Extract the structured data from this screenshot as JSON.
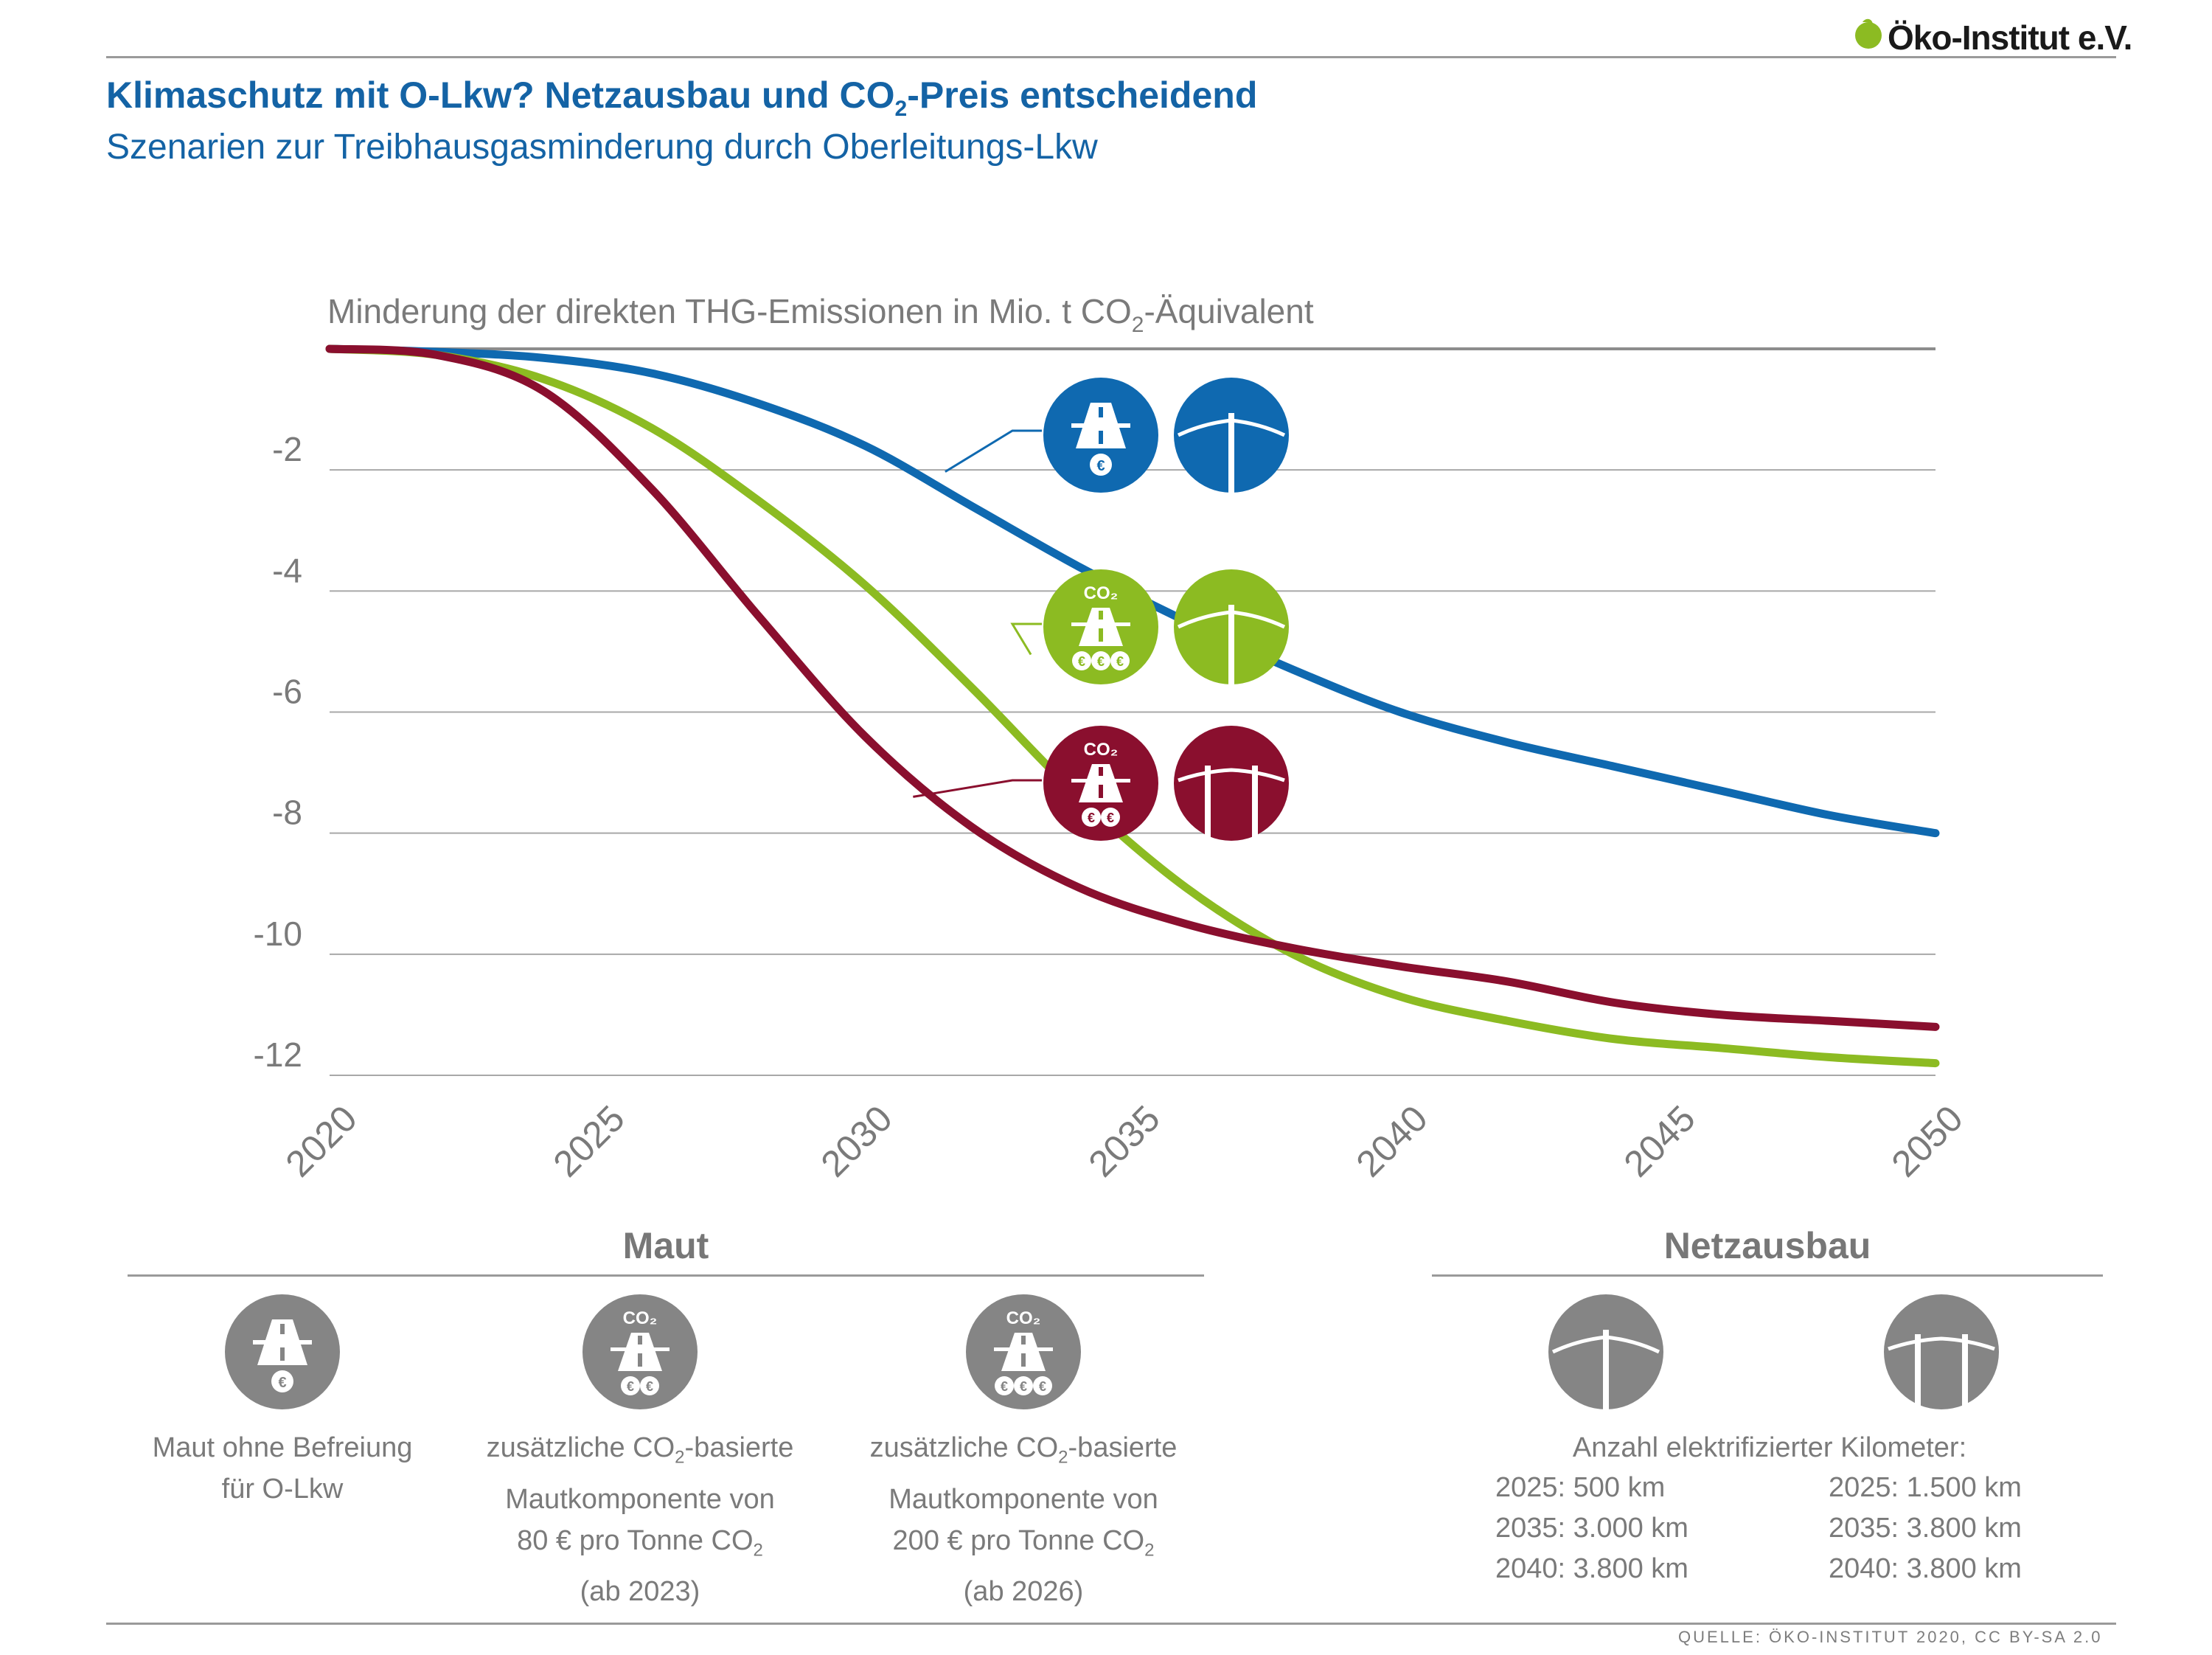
{
  "header": {
    "title_part1": "Klimaschutz mit O-Lkw? Netzausbau und CO",
    "title_sub": "2",
    "title_part2": "-Preis entscheidend",
    "subtitle": "Szenarien zur Treibhausgasminderung durch Oberleitungs-Lkw",
    "logo": "Öko-Institut e.V."
  },
  "chart_data": {
    "type": "line",
    "ylabel_part1": "Minderung der direkten THG-Emissionen in Mio. t CO",
    "ylabel_sub": "2",
    "ylabel_part2": "-Äquivalent",
    "ylim": [
      -12,
      0
    ],
    "yticks": [
      -2,
      -4,
      -6,
      -8,
      -10,
      -12
    ],
    "xlim": [
      2020,
      2050
    ],
    "xticks": [
      2020,
      2025,
      2030,
      2035,
      2040,
      2045,
      2050
    ],
    "grid": true,
    "series": [
      {
        "color": "#0f69b0",
        "x": [
          2020,
          2022,
          2024,
          2026,
          2028,
          2030,
          2032,
          2034,
          2036,
          2038,
          2040,
          2042,
          2044,
          2046,
          2048,
          2050
        ],
        "y": [
          0,
          -0.05,
          -0.15,
          -0.4,
          -0.9,
          -1.6,
          -2.6,
          -3.6,
          -4.5,
          -5.3,
          -6.0,
          -6.5,
          -6.9,
          -7.3,
          -7.7,
          -8.0
        ]
      },
      {
        "color": "#8cbb22",
        "x": [
          2020,
          2022,
          2024,
          2026,
          2028,
          2030,
          2032,
          2034,
          2036,
          2038,
          2040,
          2042,
          2044,
          2046,
          2048,
          2050
        ],
        "y": [
          0,
          -0.1,
          -0.5,
          -1.3,
          -2.5,
          -3.9,
          -5.6,
          -7.4,
          -8.9,
          -10.0,
          -10.7,
          -11.1,
          -11.4,
          -11.55,
          -11.7,
          -11.8
        ]
      },
      {
        "color": "#8a0f2e",
        "x": [
          2020,
          2022,
          2024,
          2026,
          2028,
          2030,
          2032,
          2034,
          2036,
          2038,
          2040,
          2042,
          2044,
          2046,
          2048,
          2050
        ],
        "y": [
          0,
          -0.1,
          -0.7,
          -2.3,
          -4.4,
          -6.4,
          -7.9,
          -8.9,
          -9.5,
          -9.9,
          -10.2,
          -10.45,
          -10.8,
          -11.0,
          -11.1,
          -11.2
        ]
      }
    ]
  },
  "maut": {
    "heading": "Maut",
    "items": [
      {
        "icon": "toll-road-one-euro-icon",
        "line1": "Maut ohne Befreiung",
        "line2": "für O-Lkw"
      },
      {
        "icon": "co2-toll-road-two-euro-icon",
        "line1_a": "zusätzliche CO",
        "line1_sub": "2",
        "line1_b": "-basierte",
        "line2": "Mautkomponente von",
        "line3_a": "80 € pro Tonne CO",
        "line3_sub": "2",
        "line4": "(ab 2023)"
      },
      {
        "icon": "co2-toll-road-three-euro-icon",
        "line1_a": "zusätzliche CO",
        "line1_sub": "2",
        "line1_b": "-basierte",
        "line2": "Mautkomponente von",
        "line3_a": "200 € pro Tonne CO",
        "line3_sub": "2",
        "line4": "(ab 2026)"
      }
    ]
  },
  "netz": {
    "heading": "Netzausbau",
    "caption": "Anzahl elektrifizierter Kilometer:",
    "left": [
      "2025: 500 km",
      "2035: 3.000 km",
      "2040: 3.800 km"
    ],
    "right": [
      "2025: 1.500 km",
      "2035: 3.800 km",
      "2040: 3.800 km"
    ]
  },
  "source": "QUELLE: ÖKO-INSTITUT 2020, CC BY-SA 2.0",
  "colors": {
    "blue": "#0f69b0",
    "green": "#8cbb22",
    "red": "#8a0f2e",
    "grey_icon": "#858585",
    "title": "#1463a5"
  }
}
